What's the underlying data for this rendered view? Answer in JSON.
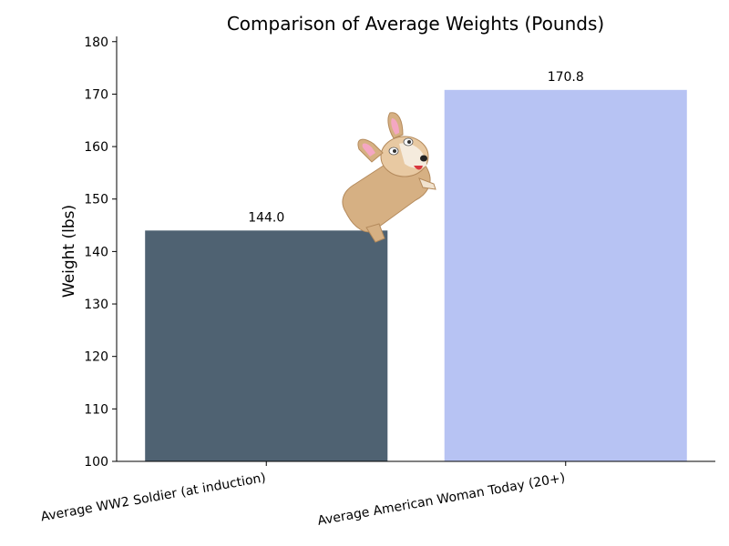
{
  "chart_data": {
    "type": "bar",
    "title": "Comparison of Average Weights (Pounds)",
    "xlabel": "",
    "ylabel": "Weight (lbs)",
    "categories": [
      "Average WW2 Soldier (at induction)",
      "Average American Woman Today (20+)"
    ],
    "values": [
      144.0,
      170.8
    ],
    "value_labels": [
      "144.0",
      "170.8"
    ],
    "colors": [
      "#4f6272",
      "#b7c3f3"
    ],
    "ylim": [
      100,
      181
    ],
    "yticks": [
      100,
      110,
      120,
      130,
      140,
      150,
      160,
      170,
      180
    ],
    "grid": false,
    "legend": "none"
  }
}
